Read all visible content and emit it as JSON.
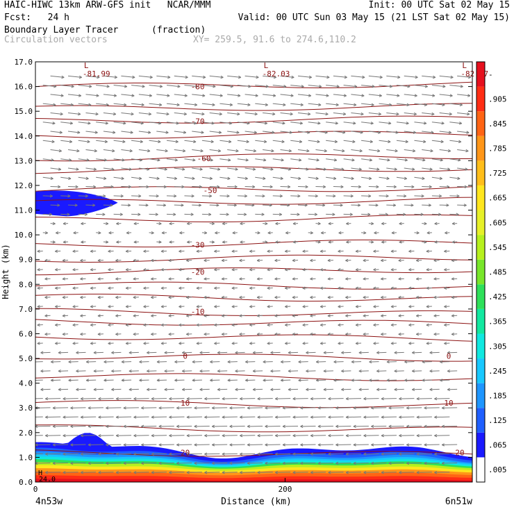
{
  "header": {
    "line1_left": "HAIC-HIWC 13km ARW-GFS init   NCAR/MMM",
    "line1_right": "Init: 00 UTC Sat 02 May 15",
    "fcst_label": "Fcst:   24 h",
    "valid": "Valid: 00 UTC Sun 03 May 15 (21 LST Sat 02 May 15)",
    "field_name": "Boundary Layer Tracer",
    "field_units": "(fraction)",
    "vector_label": "Circulation vectors",
    "xy_label": "XY= 259.5, 91.6 to 274.6,110.2"
  },
  "chart_data": {
    "type": "contour_cross_section",
    "ylabel": "Height (km)",
    "xlabel": "Distance (km)",
    "x_start_label": "4n53w",
    "x_end_label": "6n51w",
    "xlim": [
      0,
      350
    ],
    "ylim": [
      0,
      17
    ],
    "y_ticks": [
      "0.0",
      "1.0",
      "2.0",
      "3.0",
      "4.0",
      "5.0",
      "6.0",
      "7.0",
      "8.0",
      "9.0",
      "10.0",
      "11.0",
      "12.0",
      "13.0",
      "14.0",
      "15.0",
      "16.0",
      "17.0"
    ],
    "x_ticks": [
      {
        "value": 0,
        "label": "0"
      },
      {
        "value": 200,
        "label": "200"
      }
    ],
    "colorbar_labels": [
      ".005",
      ".065",
      ".125",
      ".185",
      ".245",
      ".305",
      ".365",
      ".425",
      ".485",
      ".545",
      ".605",
      ".665",
      ".725",
      ".785",
      ".845",
      ".905",
      "-"
    ],
    "colors": [
      "#ffffff",
      "#1a1aff",
      "#1f5fff",
      "#1e96ff",
      "#18c8ff",
      "#10e8e0",
      "#12e8a0",
      "#2ee05a",
      "#78e62a",
      "#b6f01e",
      "#e6f028",
      "#ffe61e",
      "#ffbe1a",
      "#ff9618",
      "#ff6414",
      "#ff2d14",
      "#e6101e"
    ],
    "temperature_contours": [
      {
        "label": "-80",
        "height": 16.0
      },
      {
        "label": "-70",
        "height": 14.6
      },
      {
        "label": "-60",
        "height": 13.1
      },
      {
        "label": "-50",
        "height": 11.8
      },
      {
        "label": "-30",
        "height": 9.6
      },
      {
        "label": "-20",
        "height": 8.5
      },
      {
        "label": "-10",
        "height": 6.9
      },
      {
        "label": "0",
        "height": 5.1
      },
      {
        "label": "10",
        "height": 3.2
      },
      {
        "label": "20",
        "height": 1.2
      },
      {
        "label": "24.0",
        "height": 0.1
      }
    ],
    "low_markers": [
      {
        "label": "L",
        "value": "-81.99",
        "x": 40
      },
      {
        "label": "L",
        "value": "-82.03",
        "x": 184
      },
      {
        "label": "L",
        "value": "-82.57",
        "x": 343
      }
    ],
    "high_marker": {
      "label": "H"
    }
  }
}
